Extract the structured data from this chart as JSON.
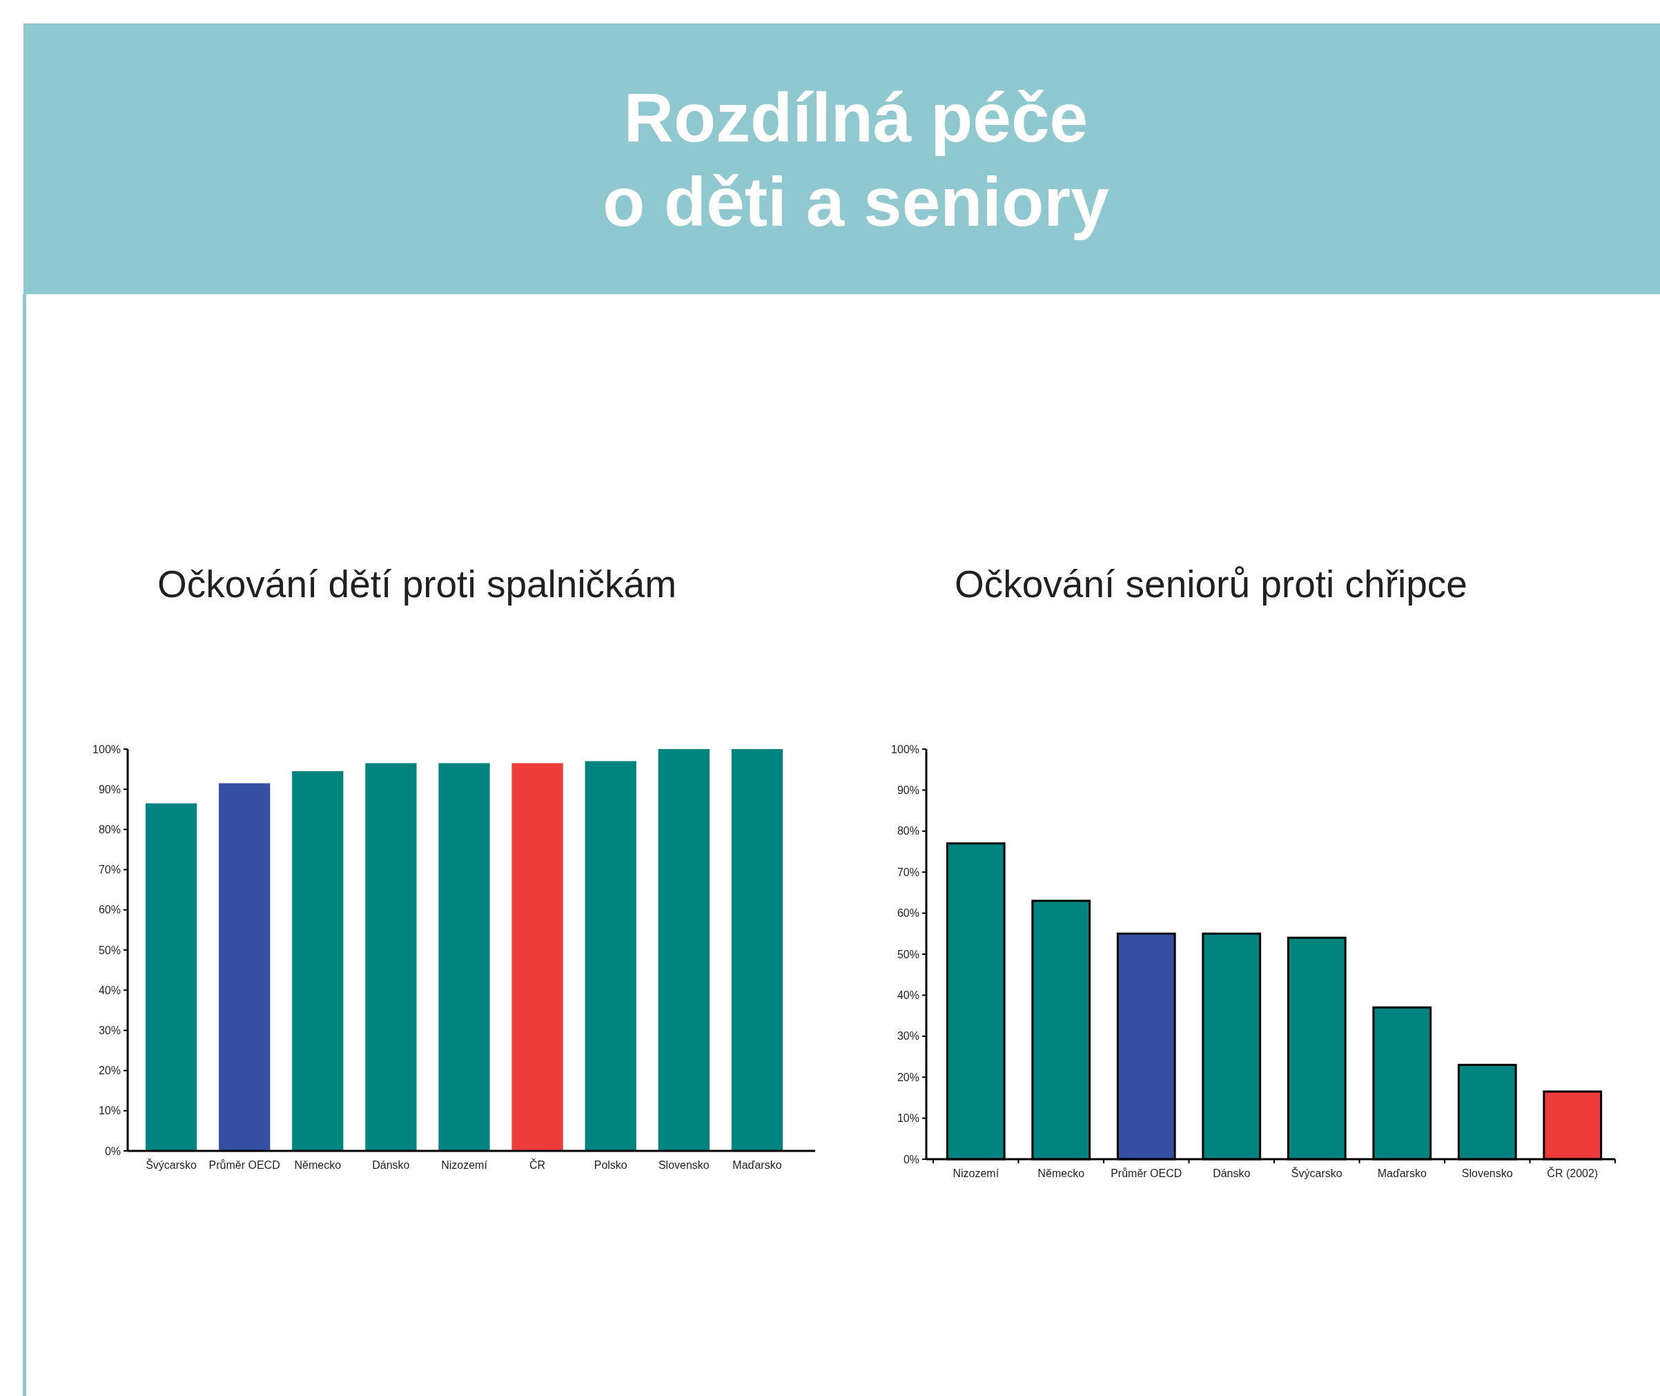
{
  "chart_data": [
    {
      "type": "other",
      "title": "Rozdílná péče\no děti a seniory"
    },
    {
      "type": "bar",
      "title": "Očkování dětí proti spalničkám",
      "categories": [
        "Švýcarsko",
        "Průměr OECD",
        "Německo",
        "Dánsko",
        "Nizozemí",
        "ČR",
        "Polsko",
        "Slovensko",
        "Maďarsko"
      ],
      "values": [
        86.5,
        91.5,
        94.5,
        96.5,
        96.5,
        96.5,
        97,
        100,
        100
      ],
      "colors": [
        "#00847f",
        "#3550a2",
        "#00847f",
        "#00847f",
        "#00847f",
        "#ee3c3a",
        "#00847f",
        "#00847f",
        "#00847f"
      ],
      "ylim": [
        0,
        100
      ],
      "yticks": [
        {
          "value": 0,
          "label": "0%"
        },
        {
          "value": 10,
          "label": "10%"
        },
        {
          "value": 20,
          "label": "20%"
        },
        {
          "value": 30,
          "label": "30%"
        },
        {
          "value": 40,
          "label": "40%"
        },
        {
          "value": 50,
          "label": "50%"
        },
        {
          "value": 60,
          "label": "60%"
        },
        {
          "value": 70,
          "label": "70%"
        },
        {
          "value": 80,
          "label": "80%"
        },
        {
          "value": 90,
          "label": "90%"
        },
        {
          "value": 100,
          "label": "100%"
        }
      ],
      "grid": false
    },
    {
      "type": "bar",
      "title": "Očkování seniorů proti chřipce",
      "categories": [
        "Nizozemí",
        "Německo",
        "Průměr OECD",
        "Dánsko",
        "Švýcarsko",
        "Maďarsko",
        "Slovensko",
        "ČR (2002)"
      ],
      "values": [
        77,
        63,
        55,
        55,
        54,
        37,
        23,
        16.5
      ],
      "colors": [
        "#00847f",
        "#00847f",
        "#3550a2",
        "#00847f",
        "#00847f",
        "#00847f",
        "#00847f",
        "#ee3c3a"
      ],
      "ylim": [
        0,
        100
      ],
      "yticks": [
        {
          "value": 0,
          "label": "0%"
        },
        {
          "value": 10,
          "label": "10%"
        },
        {
          "value": 20,
          "label": "20%"
        },
        {
          "value": 30,
          "label": "30%"
        },
        {
          "value": 40,
          "label": "40%"
        },
        {
          "value": 50,
          "label": "50%"
        },
        {
          "value": 60,
          "label": "60%"
        },
        {
          "value": 70,
          "label": "70%"
        },
        {
          "value": 80,
          "label": "80%"
        },
        {
          "value": 90,
          "label": "90%"
        },
        {
          "value": 100,
          "label": "100%"
        }
      ],
      "grid": false
    }
  ]
}
